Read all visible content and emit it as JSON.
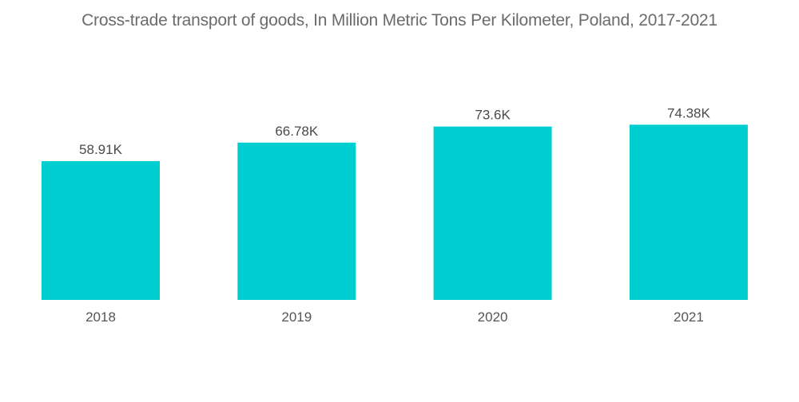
{
  "chart_data": {
    "type": "bar",
    "title": "Cross-trade transport of goods, In Million Metric Tons Per Kilometer, Poland, 2017-2021",
    "xlabel": "",
    "ylabel": "",
    "categories": [
      "2018",
      "2019",
      "2020",
      "2021"
    ],
    "values": [
      58.91,
      66.78,
      73.6,
      74.38
    ],
    "value_labels": [
      "58.91K",
      "66.78K",
      "73.6K",
      "74.38K"
    ],
    "unit": "K",
    "ylim": [
      0,
      74.38
    ],
    "grid": false,
    "legend": "none",
    "bar_color": "#00CED1"
  }
}
